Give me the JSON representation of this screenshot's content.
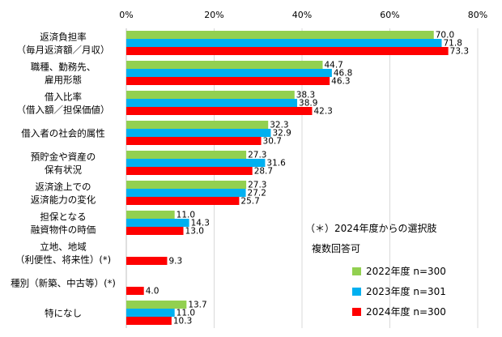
{
  "chart_data": {
    "type": "bar",
    "orientation": "horizontal",
    "xlim": [
      0,
      80
    ],
    "x_ticks": [
      "0%",
      "20%",
      "40%",
      "60%",
      "80%"
    ],
    "categories": [
      [
        "返済負担率",
        "（毎月返済額／月収）"
      ],
      [
        "職種、勤務先、",
        "雇用形態"
      ],
      [
        "借入比率",
        "（借入額／担保価値）"
      ],
      [
        "借入者の社会的属性"
      ],
      [
        "預貯金や資産の",
        "保有状況"
      ],
      [
        "返済途上での",
        "返済能力の変化"
      ],
      [
        "担保となる",
        "融資物件の時価"
      ],
      [
        "立地、地域",
        "（利便性、将来性）(*)"
      ],
      [
        "種別（新築、中古等）(*)"
      ],
      [
        "特になし"
      ]
    ],
    "series": [
      {
        "name": "2022年度 n=300",
        "color": "#92d050",
        "values": [
          70.0,
          44.7,
          38.3,
          32.3,
          27.3,
          27.3,
          11.0,
          null,
          null,
          13.7
        ]
      },
      {
        "name": "2023年度 n=301",
        "color": "#00b0f0",
        "values": [
          71.8,
          46.8,
          38.9,
          32.9,
          31.6,
          27.2,
          14.3,
          null,
          null,
          11.0
        ]
      },
      {
        "name": "2024年度 n=300",
        "color": "#ff0000",
        "values": [
          73.3,
          46.3,
          42.3,
          30.7,
          28.7,
          25.7,
          13.0,
          9.3,
          4.0,
          10.3
        ]
      }
    ],
    "grid": true,
    "legend_position": "right",
    "annotations": [
      "（＊）2024年度からの選択肢",
      "複数回答可"
    ]
  }
}
